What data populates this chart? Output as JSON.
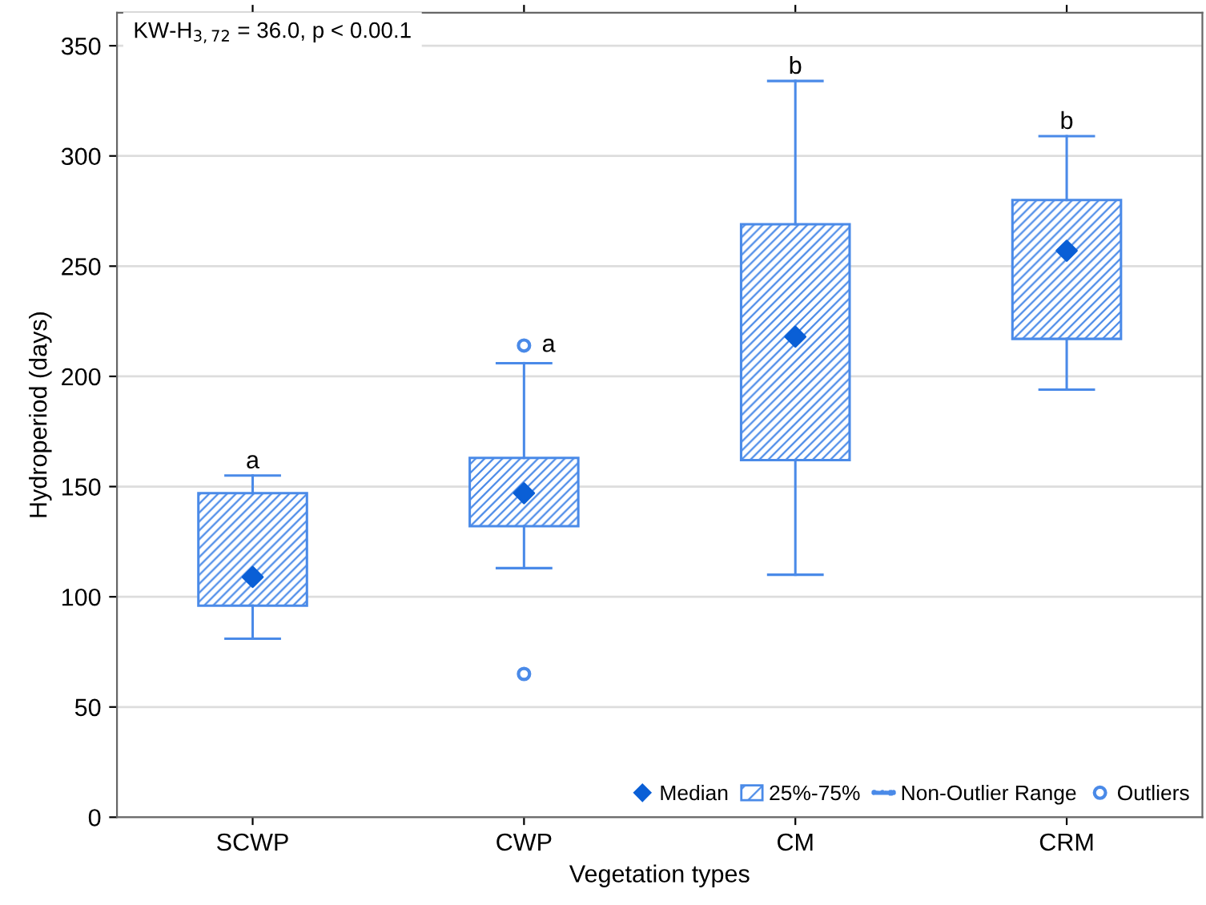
{
  "chart_data": {
    "type": "box",
    "xlabel": "Vegetation types",
    "ylabel": "Hydroperiod (days)",
    "categories": [
      "SCWP",
      "CWP",
      "CM",
      "CRM"
    ],
    "series": [
      {
        "name": "25%-75%",
        "color": "#4a8ae8",
        "boxes": [
          {
            "low": 81,
            "q1": 96,
            "median": 109,
            "q3": 147,
            "high": 155
          },
          {
            "low": 113,
            "q1": 132,
            "median": 147,
            "q3": 163,
            "high": 206,
            "outliers": [
              214,
              65
            ]
          },
          {
            "low": 110,
            "q1": 162,
            "median": 218,
            "q3": 269,
            "high": 334
          },
          {
            "low": 194,
            "q1": 217,
            "median": 257,
            "q3": 280,
            "high": 309
          }
        ]
      }
    ],
    "ylim": [
      0,
      365
    ],
    "yticks": [
      0,
      50,
      100,
      150,
      200,
      250,
      300,
      350
    ],
    "grid": "y",
    "legend": "bottom right",
    "annotations": [
      "KW-H$_{3,72}$ = 36.0, p < 0.00.1",
      "Median",
      "Non-Outlier Range",
      "Outliers",
      "a",
      "a",
      "b",
      "b"
    ]
  }
}
